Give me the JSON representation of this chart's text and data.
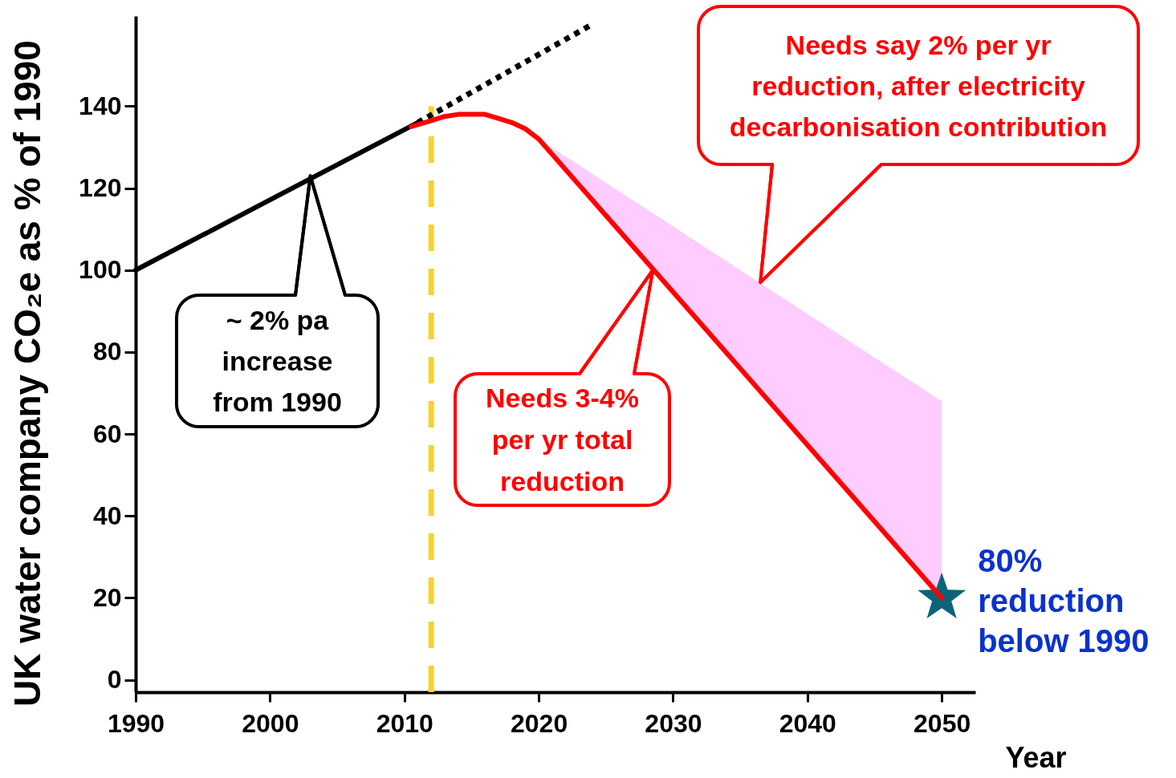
{
  "chart_data": {
    "type": "line",
    "xlabel": "Year",
    "ylabel": "UK water company CO₂e as % of 1990",
    "xlim": [
      1990,
      2052.5
    ],
    "ylim": [
      -3,
      162
    ],
    "xticks": [
      1990,
      2000,
      2010,
      2020,
      2030,
      2040,
      2050
    ],
    "yticks": [
      0,
      20,
      40,
      60,
      80,
      100,
      120,
      140
    ],
    "series": [
      {
        "color": "#000000",
        "x": [
          1990,
          2011
        ],
        "values": [
          100,
          136
        ]
      },
      {
        "color": "#000000",
        "line_style": "dotted",
        "x": [
          2011,
          2024
        ],
        "values": [
          136,
          160
        ]
      },
      {
        "color": "#ff0000",
        "x": [
          2010.5,
          2011,
          2012,
          2013,
          2014,
          2015,
          2016,
          2017,
          2018,
          2019,
          2020,
          2050
        ],
        "values": [
          135,
          135.5,
          136.5,
          137.5,
          138,
          138,
          138,
          137,
          136,
          134.5,
          132,
          20
        ],
        "lower": [
          null,
          null,
          null,
          null,
          null,
          null,
          null,
          null,
          null,
          null,
          132,
          20
        ],
        "upper": [
          null,
          null,
          null,
          null,
          null,
          null,
          null,
          null,
          null,
          null,
          132,
          68
        ]
      },
      {
        "type": "scatter",
        "color": "#0b6378",
        "marker": "star",
        "x": [
          2050
        ],
        "values": [
          20
        ]
      }
    ],
    "ref_lines": [
      {
        "axis": "x",
        "value": 2012,
        "color": "#f8d32a",
        "line_style": "dashed"
      }
    ],
    "annotations": [
      {
        "text": "~ 2% pa increase from 1990",
        "x": 2003,
        "y": 123
      },
      {
        "text": "Needs say 2% per yr reduction, after electricity decarbonisation contribution",
        "x": 2036.5,
        "y": 97
      },
      {
        "text": "Needs 3-4% per yr total reduction",
        "x": 2028.5,
        "y": 100
      },
      {
        "text": "80% reduction below 1990",
        "x": 2050,
        "y": 20
      }
    ]
  }
}
